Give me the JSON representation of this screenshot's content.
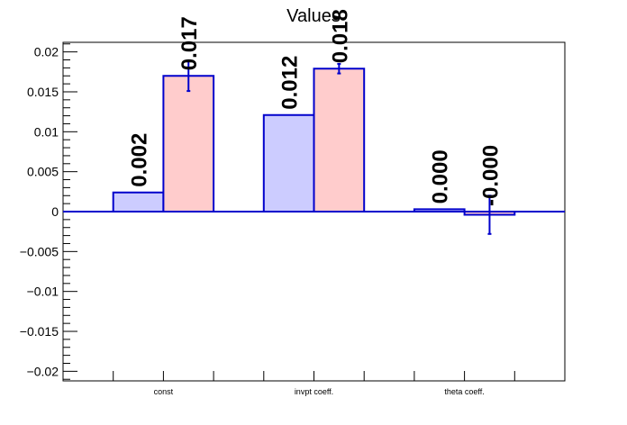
{
  "chart_data": {
    "type": "bar",
    "title": "Values",
    "xlabel": "",
    "ylabel": "",
    "ylim": [
      -0.0212,
      0.0212
    ],
    "yticks": [
      {
        "v": 0.02,
        "label": "0.02"
      },
      {
        "v": 0.015,
        "label": "0.015"
      },
      {
        "v": 0.01,
        "label": "0.01"
      },
      {
        "v": 0.005,
        "label": "0.005"
      },
      {
        "v": 0,
        "label": "0"
      },
      {
        "v": -0.005,
        "label": "−0.005"
      },
      {
        "v": -0.01,
        "label": "−0.01"
      },
      {
        "v": -0.015,
        "label": "−0.015"
      },
      {
        "v": -0.02,
        "label": "−0.02"
      }
    ],
    "categories": [
      "const",
      "invpt coeff.",
      "theta coeff."
    ],
    "series": [
      {
        "values": [
          0.0024,
          0.0121,
          0.0003
        ],
        "errors": [
          0,
          0,
          0
        ],
        "labels": [
          "0.002",
          "0.012",
          "0.000"
        ],
        "fill": "#ccccff",
        "stroke": "#0000cc"
      },
      {
        "values": [
          0.017,
          0.0179,
          -0.0004
        ],
        "errors": [
          0.0019,
          0.0006,
          0.0024
        ],
        "labels": [
          "0.017",
          "0.018",
          "-0.000"
        ],
        "fill": "#ffcccc",
        "stroke": "#0000cc"
      }
    ],
    "grid": false,
    "legend": "none"
  }
}
